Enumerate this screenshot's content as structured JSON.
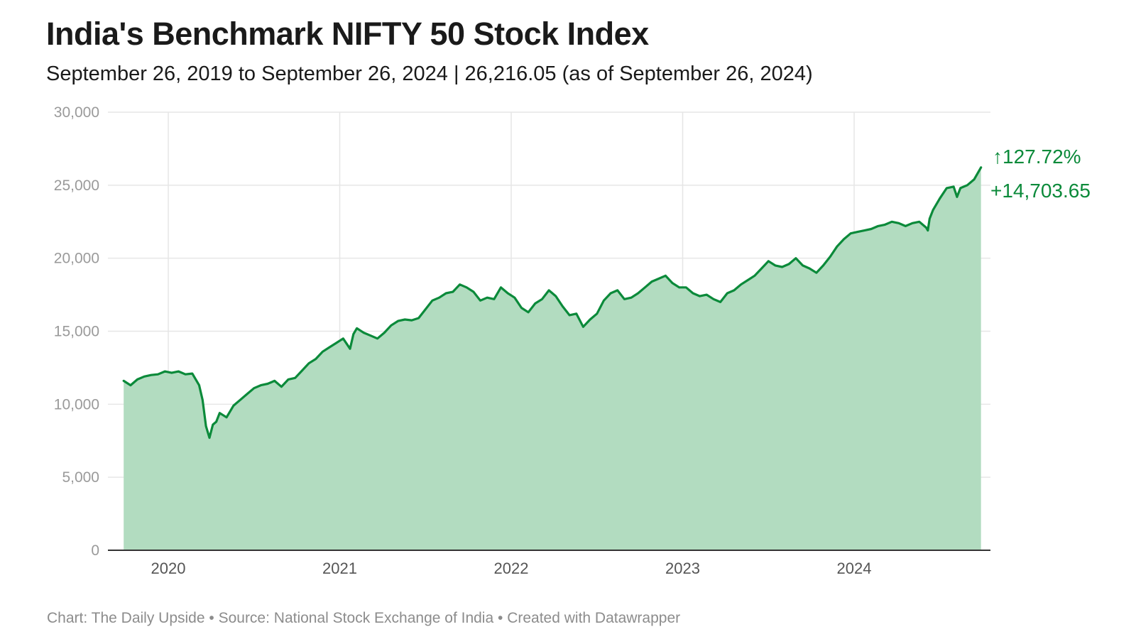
{
  "title": "India's Benchmark NIFTY 50 Stock Index",
  "subtitle": "September 26, 2019 to September 26, 2024 | 26,216.05 (as of September 26, 2024)",
  "footer": {
    "chart_credit": "Chart: The Daily Upside",
    "separator": " • ",
    "source": "Source: National Stock Exchange of India",
    "tool": "Created with Datawrapper"
  },
  "annotation": {
    "percent_change": "↑127.72%",
    "point_change": "+14,703.65"
  },
  "colors": {
    "line": "#0b8a3a",
    "area": "#b2dcc0",
    "grid": "#e6e6e6",
    "axis": "#333333",
    "annotation": "#0b8a3a"
  },
  "chart_data": {
    "type": "area",
    "title": "India's Benchmark NIFTY 50 Stock Index",
    "xlabel": "",
    "ylabel": "",
    "ylim": [
      0,
      30000
    ],
    "xlim": [
      2019.74,
      2024.74
    ],
    "y_ticks": [
      0,
      5000,
      10000,
      15000,
      20000,
      25000,
      30000
    ],
    "y_tick_labels": [
      "0",
      "5,000",
      "10,000",
      "15,000",
      "20,000",
      "25,000",
      "30,000"
    ],
    "x_ticks": [
      2020,
      2021,
      2022,
      2023,
      2024
    ],
    "x_tick_labels": [
      "2020",
      "2021",
      "2022",
      "2023",
      "2024"
    ],
    "grid": true,
    "series": [
      {
        "name": "NIFTY 50",
        "x": [
          2019.74,
          2019.78,
          2019.82,
          2019.86,
          2019.9,
          2019.94,
          2019.98,
          2020.02,
          2020.06,
          2020.1,
          2020.14,
          2020.18,
          2020.2,
          2020.22,
          2020.24,
          2020.26,
          2020.28,
          2020.3,
          2020.34,
          2020.38,
          2020.42,
          2020.46,
          2020.5,
          2020.54,
          2020.58,
          2020.62,
          2020.66,
          2020.7,
          2020.74,
          2020.78,
          2020.82,
          2020.86,
          2020.9,
          2020.94,
          2020.98,
          2021.02,
          2021.06,
          2021.08,
          2021.1,
          2021.14,
          2021.18,
          2021.22,
          2021.26,
          2021.3,
          2021.34,
          2021.38,
          2021.42,
          2021.46,
          2021.5,
          2021.54,
          2021.58,
          2021.62,
          2021.66,
          2021.7,
          2021.74,
          2021.78,
          2021.82,
          2021.86,
          2021.9,
          2021.94,
          2021.98,
          2022.02,
          2022.06,
          2022.1,
          2022.14,
          2022.18,
          2022.22,
          2022.26,
          2022.3,
          2022.34,
          2022.38,
          2022.42,
          2022.46,
          2022.5,
          2022.54,
          2022.58,
          2022.62,
          2022.66,
          2022.7,
          2022.74,
          2022.78,
          2022.82,
          2022.86,
          2022.9,
          2022.94,
          2022.98,
          2023.02,
          2023.06,
          2023.1,
          2023.14,
          2023.18,
          2023.22,
          2023.26,
          2023.3,
          2023.34,
          2023.38,
          2023.42,
          2023.46,
          2023.5,
          2023.54,
          2023.58,
          2023.62,
          2023.66,
          2023.7,
          2023.74,
          2023.78,
          2023.82,
          2023.86,
          2023.9,
          2023.94,
          2023.98,
          2024.02,
          2024.06,
          2024.1,
          2024.14,
          2024.18,
          2024.22,
          2024.26,
          2024.3,
          2024.34,
          2024.38,
          2024.42,
          2024.43,
          2024.44,
          2024.46,
          2024.5,
          2024.54,
          2024.58,
          2024.6,
          2024.62,
          2024.66,
          2024.7,
          2024.74
        ],
        "values": [
          11600,
          11300,
          11700,
          11900,
          12000,
          12050,
          12250,
          12150,
          12250,
          12050,
          12100,
          11300,
          10300,
          8500,
          7700,
          8600,
          8800,
          9400,
          9100,
          9900,
          10300,
          10700,
          11100,
          11300,
          11400,
          11600,
          11200,
          11700,
          11800,
          12300,
          12800,
          13100,
          13600,
          13900,
          14200,
          14500,
          13800,
          14800,
          15200,
          14900,
          14700,
          14500,
          14900,
          15400,
          15700,
          15800,
          15750,
          15900,
          16500,
          17100,
          17300,
          17600,
          17700,
          18200,
          18000,
          17700,
          17100,
          17300,
          17200,
          18000,
          17600,
          17300,
          16600,
          16300,
          16900,
          17200,
          17800,
          17400,
          16700,
          16100,
          16200,
          15300,
          15800,
          16200,
          17100,
          17600,
          17800,
          17200,
          17300,
          17600,
          18000,
          18400,
          18600,
          18800,
          18300,
          18000,
          18000,
          17600,
          17400,
          17500,
          17200,
          17000,
          17600,
          17800,
          18200,
          18500,
          18800,
          19300,
          19800,
          19500,
          19400,
          19600,
          20000,
          19500,
          19300,
          19000,
          19500,
          20100,
          20800,
          21300,
          21700,
          21800,
          21900,
          22000,
          22200,
          22300,
          22500,
          22400,
          22200,
          22400,
          22500,
          22100,
          21900,
          22700,
          23300,
          24100,
          24800,
          24900,
          24200,
          24800,
          25000,
          25400,
          26216
        ]
      }
    ],
    "annotations": [
      "↑127.72%",
      "+14,703.65"
    ]
  }
}
